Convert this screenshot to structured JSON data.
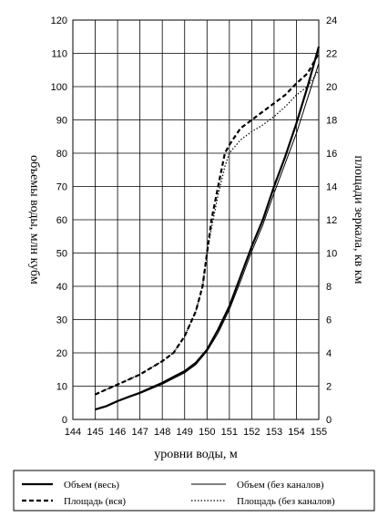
{
  "chart_data": {
    "type": "line",
    "xlabel": "уровни воды, м",
    "ylabel_left": "объемы воды, млн кубм",
    "ylabel_right": "площади зеркала, кв км",
    "x_ticks": [
      144,
      145,
      146,
      147,
      148,
      149,
      150,
      151,
      152,
      153,
      154,
      155
    ],
    "y_left_ticks": [
      0,
      10,
      20,
      30,
      40,
      50,
      60,
      70,
      80,
      90,
      100,
      110,
      120
    ],
    "y_right_ticks": [
      0,
      2,
      4,
      6,
      8,
      10,
      12,
      14,
      16,
      18,
      20,
      22,
      24
    ],
    "xlim": [
      144,
      155
    ],
    "ylim_left": [
      0,
      120
    ],
    "ylim_right": [
      0,
      24
    ],
    "grid": true,
    "legend_position": "bottom",
    "series": [
      {
        "name": "Объем (весь)",
        "axis": "left",
        "style": "solid-thick",
        "x": [
          145,
          145.5,
          146,
          146.5,
          147,
          147.5,
          148,
          148.5,
          149,
          149.5,
          150,
          150.5,
          151,
          151.5,
          152,
          152.5,
          153,
          153.5,
          154,
          154.5,
          155
        ],
        "values": [
          3,
          4,
          5.5,
          6.8,
          8,
          9.5,
          11,
          12.8,
          14.5,
          17,
          21,
          27,
          34,
          43,
          52,
          60,
          70,
          79,
          89,
          100,
          112
        ]
      },
      {
        "name": "Объем (без каналов)",
        "axis": "left",
        "style": "solid-thin",
        "x": [
          145,
          145.5,
          146,
          146.5,
          147,
          147.5,
          148,
          148.5,
          149,
          149.5,
          150,
          150.5,
          151,
          151.5,
          152,
          152.5,
          153,
          153.5,
          154,
          154.5,
          155
        ],
        "values": [
          3,
          4,
          5.4,
          6.7,
          7.8,
          9.2,
          10.6,
          12.3,
          14,
          16.5,
          20.5,
          26,
          33,
          41.5,
          50.5,
          58.5,
          68,
          77,
          86,
          96.5,
          107
        ]
      },
      {
        "name": "Площадь (вся)",
        "axis": "right",
        "style": "dashed",
        "x": [
          145,
          145.5,
          146,
          146.5,
          147,
          147.5,
          148,
          148.5,
          149,
          149.5,
          149.8,
          150,
          150.2,
          150.5,
          150.8,
          151,
          151.5,
          152,
          152.5,
          153,
          153.5,
          154,
          154.5,
          155
        ],
        "values": [
          1.5,
          1.8,
          2.1,
          2.4,
          2.7,
          3.1,
          3.5,
          4.0,
          5.0,
          6.5,
          8.0,
          10,
          12,
          14,
          16,
          16.5,
          17.5,
          18,
          18.5,
          19,
          19.5,
          20.2,
          20.8,
          22
        ]
      },
      {
        "name": "Площадь (без каналов)",
        "axis": "right",
        "style": "dotted",
        "x": [
          145,
          145.5,
          146,
          146.5,
          147,
          147.5,
          148,
          148.5,
          149,
          149.5,
          149.8,
          150,
          150.2,
          150.5,
          150.8,
          151,
          151.5,
          152,
          152.5,
          153,
          153.5,
          154,
          154.5,
          155
        ],
        "values": [
          1.5,
          1.8,
          2.1,
          2.4,
          2.7,
          3.1,
          3.5,
          4.0,
          5.0,
          6.5,
          8.0,
          10,
          11.5,
          13.5,
          15.2,
          16,
          16.8,
          17.3,
          17.7,
          18.2,
          18.8,
          19.5,
          20,
          21
        ]
      }
    ]
  },
  "legend": {
    "items": [
      {
        "label": "Объем (весь)",
        "style": "solid-thick"
      },
      {
        "label": "Объем (без каналов)",
        "style": "solid-thin"
      },
      {
        "label": "Площадь (вся)",
        "style": "dashed"
      },
      {
        "label": "Площадь (без каналов)",
        "style": "dotted"
      }
    ]
  }
}
